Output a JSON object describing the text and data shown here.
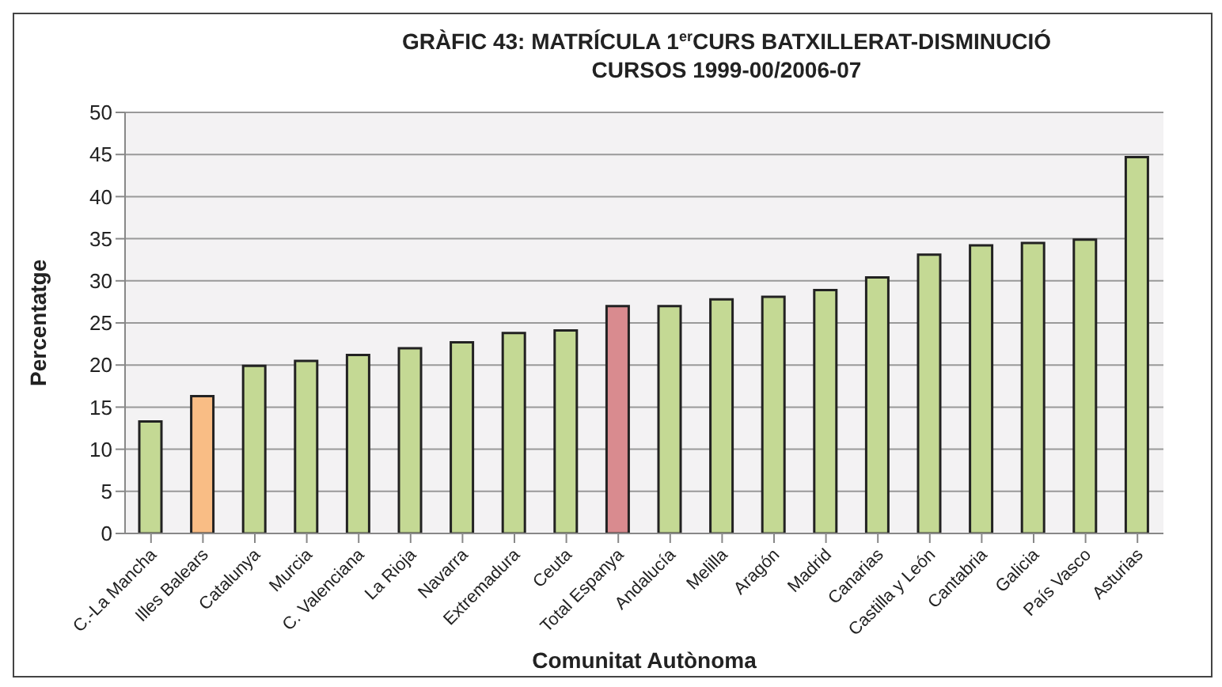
{
  "chart_data": {
    "type": "bar",
    "title": "GRÀFIC 43: MATRÍCULA 1$^{er}$CURS BATXILLERAT-DISMINUCIÓ\nCURSOS 1999-00/2006-07",
    "xlabel": "Comunitat Autònoma",
    "ylabel": "Percentatge",
    "categories": [
      "C.-La Mancha",
      "Illes Balears",
      "Catalunya",
      "Murcia",
      "C. Valenciana",
      "La Rioja",
      "Navarra",
      "Extremadura",
      "Ceuta",
      "Total Espanya",
      "Andalucía",
      "Melilla",
      "Aragón",
      "Madrid",
      "Canarias",
      "Castilla y León",
      "Cantabria",
      "Galicia",
      "País Vasco",
      "Asturias"
    ],
    "values": [
      13.3,
      16.3,
      19.9,
      20.5,
      21.2,
      22,
      22.7,
      23.8,
      24.1,
      27,
      27,
      27.8,
      28.1,
      28.9,
      30.4,
      33.1,
      34.2,
      34.5,
      34.9,
      44.7
    ],
    "colors": [
      "#c4d994",
      "#f9bd85",
      "#c4d994",
      "#c4d994",
      "#c4d994",
      "#c4d994",
      "#c4d994",
      "#c4d994",
      "#c4d994",
      "#d98b8f",
      "#c4d994",
      "#c4d994",
      "#c4d994",
      "#c4d994",
      "#c4d994",
      "#c4d994",
      "#c4d994",
      "#c4d994",
      "#c4d994",
      "#c4d994"
    ],
    "ylim": [
      0,
      50
    ],
    "yticks": [
      0,
      5,
      10,
      15,
      20,
      25,
      30,
      35,
      40,
      45,
      50
    ],
    "grid": "y",
    "legend": false
  }
}
